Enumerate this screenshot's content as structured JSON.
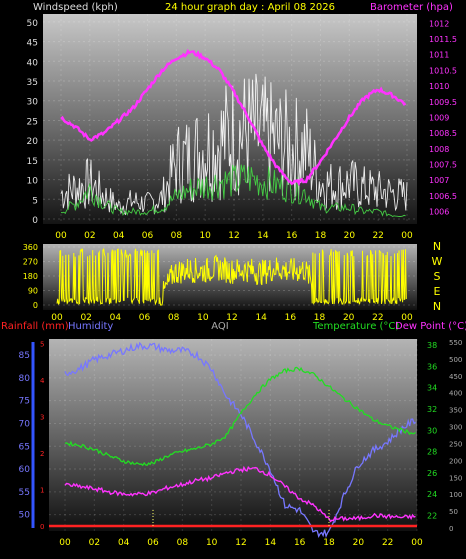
{
  "header": {
    "left_label": "Windspeed (kph)",
    "title": "24 hour graph day : April 08 2026",
    "right_label": "Barometer (hpa)"
  },
  "bottom_header": {
    "rainfall": "Rainfall (mm)",
    "humidity": "Humidity",
    "aqi": "AQI",
    "temperature": "Temperature (°C)",
    "dewpoint": "Dew Point (°C)"
  },
  "colors": {
    "background": "#000000",
    "windspeed": "#ffffff",
    "gust_avg": "#44cc44",
    "barometer": "#ff33ff",
    "direction": "#ffff00",
    "humidity": "#7777ff",
    "temperature": "#22dd22",
    "dewpoint": "#ff33ff",
    "rainfall": "#ff2222",
    "aqi": "#aaaaaa"
  },
  "chart_data": [
    {
      "type": "line",
      "name_key": "wind_baro",
      "x_ticks": [
        "00",
        "02",
        "04",
        "06",
        "08",
        "10",
        "12",
        "14",
        "16",
        "18",
        "20",
        "22",
        "00"
      ],
      "left_axis": {
        "label": "Windspeed (kph)",
        "ylim": [
          0,
          52
        ],
        "ticks": [
          "0",
          "5",
          "10",
          "15",
          "20",
          "25",
          "30",
          "35",
          "40",
          "45",
          "50"
        ]
      },
      "right_axis": {
        "label": "Barometer (hpa)",
        "ylim": [
          1005.6,
          1012.3
        ],
        "ticks": [
          "1006",
          "1006.5",
          "1007",
          "1007.5",
          "1008",
          "1008.5",
          "1009",
          "1009.5",
          "1010",
          "1010.5",
          "1011",
          "1011.5",
          "1012"
        ]
      },
      "series": [
        {
          "name": "Barometer (hpa)",
          "axis": "right",
          "x_hours": [
            0,
            1,
            2,
            3,
            4,
            5,
            6,
            7,
            8,
            9,
            10,
            11,
            12,
            13,
            14,
            15,
            16,
            17,
            18,
            19,
            20,
            21,
            22,
            23,
            24
          ],
          "values": [
            1009.0,
            1008.7,
            1008.3,
            1008.5,
            1008.9,
            1009.3,
            1009.9,
            1010.5,
            1010.9,
            1011.1,
            1010.9,
            1010.5,
            1009.8,
            1009.0,
            1008.1,
            1007.4,
            1006.9,
            1007.0,
            1007.6,
            1008.3,
            1009.0,
            1009.6,
            1009.9,
            1009.7,
            1009.4
          ]
        },
        {
          "name": "Windspeed (kph)",
          "axis": "left",
          "x_hours": [
            0,
            1,
            2,
            3,
            4,
            5,
            6,
            7,
            8,
            9,
            10,
            11,
            12,
            13,
            14,
            15,
            16,
            17,
            18,
            19,
            20,
            21,
            22,
            23,
            24
          ],
          "values": [
            10,
            12,
            14,
            9,
            5,
            7,
            6,
            8,
            22,
            24,
            28,
            30,
            33,
            34,
            32,
            30,
            28,
            27,
            14,
            13,
            14,
            12,
            11,
            10,
            9
          ]
        },
        {
          "name": "Average wind (kph)",
          "axis": "left",
          "x_hours": [
            0,
            1,
            2,
            3,
            4,
            5,
            6,
            7,
            8,
            9,
            10,
            11,
            12,
            13,
            14,
            15,
            16,
            17,
            18,
            19,
            20,
            21,
            22,
            23,
            24
          ],
          "values": [
            2,
            4,
            8,
            4,
            2,
            2,
            2,
            3,
            6,
            8,
            9,
            10,
            10,
            11,
            10,
            9,
            8,
            7,
            3,
            3,
            3,
            2,
            2,
            1,
            1
          ]
        }
      ]
    },
    {
      "type": "line",
      "name_key": "direction",
      "x_ticks": [
        "00",
        "02",
        "04",
        "06",
        "08",
        "10",
        "12",
        "14",
        "16",
        "18",
        "20",
        "22",
        "00"
      ],
      "left_axis": {
        "ylim": [
          0,
          360
        ],
        "ticks": [
          "0",
          "90",
          "180",
          "270",
          "360"
        ]
      },
      "right_labels": [
        "N",
        "W",
        "S",
        "E",
        "N"
      ],
      "series": [
        {
          "name": "Wind direction",
          "x_hours": [
            0,
            1,
            2,
            3,
            4,
            5,
            6,
            7,
            8,
            9,
            10,
            11,
            12,
            13,
            14,
            15,
            16,
            17,
            18,
            19,
            20,
            21,
            22,
            23,
            24
          ],
          "values": [
            20,
            300,
            40,
            310,
            30,
            330,
            10,
            15,
            200,
            220,
            210,
            230,
            210,
            220,
            200,
            230,
            210,
            220,
            60,
            300,
            40,
            280,
            30,
            20,
            20
          ]
        }
      ]
    },
    {
      "type": "line",
      "name_key": "temp_hum",
      "x_ticks": [
        "00",
        "02",
        "04",
        "06",
        "08",
        "10",
        "12",
        "14",
        "16",
        "18",
        "20",
        "22",
        "00"
      ],
      "humidity_axis": {
        "label": "Humidity",
        "ylim": [
          45,
          88
        ],
        "ticks": [
          "50",
          "55",
          "60",
          "65",
          "70",
          "75",
          "80",
          "85"
        ]
      },
      "temp_axis": {
        "label": "Temperature (°C)",
        "ylim": [
          20.5,
          38.5
        ],
        "ticks": [
          "22",
          "24",
          "26",
          "28",
          "30",
          "32",
          "34",
          "36",
          "38"
        ]
      },
      "aqi_axis": {
        "label": "AQI",
        "ylim": [
          0,
          560
        ],
        "ticks": [
          "0",
          "50",
          "100",
          "150",
          "200",
          "250",
          "300",
          "350",
          "400",
          "450",
          "500",
          "550"
        ]
      },
      "rain_ticks": [
        "0",
        "1",
        "2",
        "3",
        "4",
        "5"
      ],
      "series": [
        {
          "name": "Humidity",
          "x_hours": [
            0,
            1,
            2,
            3,
            4,
            5,
            6,
            7,
            8,
            9,
            10,
            11,
            12,
            13,
            14,
            15,
            16,
            17,
            18,
            19,
            20,
            21,
            22,
            23,
            24
          ],
          "values": [
            81,
            82,
            84,
            85,
            86,
            87,
            87,
            86,
            86,
            85,
            82,
            76,
            72,
            66,
            60,
            52,
            51,
            46,
            46,
            54,
            61,
            64,
            66,
            69,
            71
          ]
        },
        {
          "name": "Temperature (°C)",
          "x_hours": [
            0,
            1,
            2,
            3,
            4,
            5,
            6,
            7,
            8,
            9,
            10,
            11,
            12,
            13,
            14,
            15,
            16,
            17,
            18,
            19,
            20,
            21,
            22,
            23,
            24
          ],
          "values": [
            28.8,
            28.6,
            28.2,
            27.6,
            27.1,
            26.8,
            26.9,
            27.6,
            28.0,
            28.3,
            28.7,
            29.5,
            31.6,
            33.4,
            34.8,
            35.6,
            35.8,
            35.2,
            34.1,
            33.0,
            32.0,
            31.0,
            30.4,
            30.0,
            29.6
          ]
        },
        {
          "name": "Dew Point (°C)",
          "x_hours": [
            0,
            1,
            2,
            3,
            4,
            5,
            6,
            7,
            8,
            9,
            10,
            11,
            12,
            13,
            14,
            15,
            16,
            17,
            18,
            19,
            20,
            21,
            22,
            23,
            24
          ],
          "values": [
            24.9,
            24.7,
            24.5,
            24.2,
            24.0,
            24.0,
            24.1,
            24.6,
            24.9,
            25.3,
            25.5,
            26.0,
            26.3,
            26.4,
            25.8,
            24.7,
            23.6,
            22.9,
            21.6,
            21.7,
            21.7,
            22.0,
            21.9,
            21.8,
            21.9
          ]
        },
        {
          "name": "Rainfall (mm)",
          "x_hours": [
            0,
            24
          ],
          "values": [
            0,
            0
          ]
        }
      ]
    }
  ]
}
